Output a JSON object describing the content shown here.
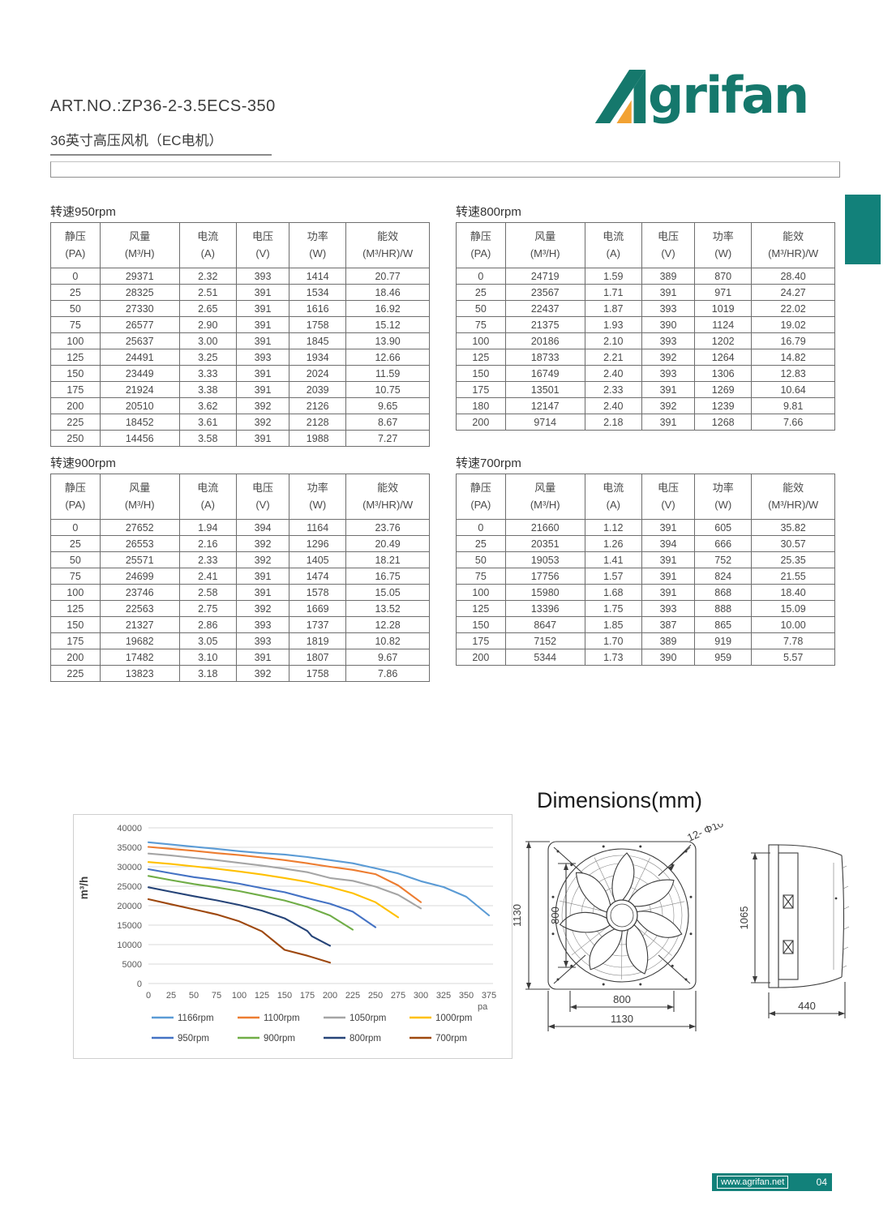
{
  "header": {
    "art_no": "ART.NO.:ZP36-2-3.5ECS-350",
    "subtitle": "36英寸高压风机（EC电机）"
  },
  "logo": {
    "full_name": "Agrifan",
    "text_after_a": "grifan",
    "teal": "#15786C",
    "orange": "#F2A233"
  },
  "colors": {
    "teal": "#12817A"
  },
  "table_columns": [
    [
      "静压",
      "(PA)"
    ],
    [
      "风量",
      "(M³/H)"
    ],
    [
      "电流",
      "(A)"
    ],
    [
      "电压",
      "(V)"
    ],
    [
      "功率",
      "(W)"
    ],
    [
      "能效",
      "(M³/HR)/W"
    ]
  ],
  "tables": [
    {
      "title": "转速950rpm",
      "rows": [
        [
          "0",
          "29371",
          "2.32",
          "393",
          "1414",
          "20.77"
        ],
        [
          "25",
          "28325",
          "2.51",
          "391",
          "1534",
          "18.46"
        ],
        [
          "50",
          "27330",
          "2.65",
          "391",
          "1616",
          "16.92"
        ],
        [
          "75",
          "26577",
          "2.90",
          "391",
          "1758",
          "15.12"
        ],
        [
          "100",
          "25637",
          "3.00",
          "391",
          "1845",
          "13.90"
        ],
        [
          "125",
          "24491",
          "3.25",
          "393",
          "1934",
          "12.66"
        ],
        [
          "150",
          "23449",
          "3.33",
          "391",
          "2024",
          "11.59"
        ],
        [
          "175",
          "21924",
          "3.38",
          "391",
          "2039",
          "10.75"
        ],
        [
          "200",
          "20510",
          "3.62",
          "392",
          "2126",
          "9.65"
        ],
        [
          "225",
          "18452",
          "3.61",
          "392",
          "2128",
          "8.67"
        ],
        [
          "250",
          "14456",
          "3.58",
          "391",
          "1988",
          "7.27"
        ]
      ]
    },
    {
      "title": "转速800rpm",
      "rows": [
        [
          "0",
          "24719",
          "1.59",
          "389",
          "870",
          "28.40"
        ],
        [
          "25",
          "23567",
          "1.71",
          "391",
          "971",
          "24.27"
        ],
        [
          "50",
          "22437",
          "1.87",
          "393",
          "1019",
          "22.02"
        ],
        [
          "75",
          "21375",
          "1.93",
          "390",
          "1124",
          "19.02"
        ],
        [
          "100",
          "20186",
          "2.10",
          "393",
          "1202",
          "16.79"
        ],
        [
          "125",
          "18733",
          "2.21",
          "392",
          "1264",
          "14.82"
        ],
        [
          "150",
          "16749",
          "2.40",
          "393",
          "1306",
          "12.83"
        ],
        [
          "175",
          "13501",
          "2.33",
          "391",
          "1269",
          "10.64"
        ],
        [
          "180",
          "12147",
          "2.40",
          "392",
          "1239",
          "9.81"
        ],
        [
          "200",
          "9714",
          "2.18",
          "391",
          "1268",
          "7.66"
        ]
      ]
    },
    {
      "title": "转速900rpm",
      "rows": [
        [
          "0",
          "27652",
          "1.94",
          "394",
          "1164",
          "23.76"
        ],
        [
          "25",
          "26553",
          "2.16",
          "392",
          "1296",
          "20.49"
        ],
        [
          "50",
          "25571",
          "2.33",
          "392",
          "1405",
          "18.21"
        ],
        [
          "75",
          "24699",
          "2.41",
          "391",
          "1474",
          "16.75"
        ],
        [
          "100",
          "23746",
          "2.58",
          "391",
          "1578",
          "15.05"
        ],
        [
          "125",
          "22563",
          "2.75",
          "392",
          "1669",
          "13.52"
        ],
        [
          "150",
          "21327",
          "2.86",
          "393",
          "1737",
          "12.28"
        ],
        [
          "175",
          "19682",
          "3.05",
          "393",
          "1819",
          "10.82"
        ],
        [
          "200",
          "17482",
          "3.10",
          "391",
          "1807",
          "9.67"
        ],
        [
          "225",
          "13823",
          "3.18",
          "392",
          "1758",
          "7.86"
        ]
      ]
    },
    {
      "title": "转速700rpm",
      "rows": [
        [
          "0",
          "21660",
          "1.12",
          "391",
          "605",
          "35.82"
        ],
        [
          "25",
          "20351",
          "1.26",
          "394",
          "666",
          "30.57"
        ],
        [
          "50",
          "19053",
          "1.41",
          "391",
          "752",
          "25.35"
        ],
        [
          "75",
          "17756",
          "1.57",
          "391",
          "824",
          "21.55"
        ],
        [
          "100",
          "15980",
          "1.68",
          "391",
          "868",
          "18.40"
        ],
        [
          "125",
          "13396",
          "1.75",
          "393",
          "888",
          "15.09"
        ],
        [
          "150",
          "8647",
          "1.85",
          "387",
          "865",
          "10.00"
        ],
        [
          "175",
          "7152",
          "1.70",
          "389",
          "919",
          "7.78"
        ],
        [
          "200",
          "5344",
          "1.73",
          "390",
          "959",
          "5.57"
        ]
      ]
    }
  ],
  "chart_data": {
    "type": "line",
    "ylabel": "m³/h",
    "xlabel": "pa",
    "xlim": [
      0,
      375
    ],
    "ylim": [
      0,
      40000
    ],
    "grid": true,
    "legend_position": "bottom",
    "yticks": [
      0,
      5000,
      10000,
      15000,
      20000,
      25000,
      30000,
      35000,
      40000
    ],
    "xticks": [
      0,
      25,
      50,
      75,
      100,
      125,
      150,
      175,
      200,
      225,
      250,
      275,
      300,
      325,
      350,
      375
    ],
    "series": [
      {
        "name": "1166rpm",
        "color": "#5B9BD5",
        "x": [
          0,
          25,
          50,
          75,
          100,
          125,
          150,
          175,
          200,
          225,
          250,
          275,
          300,
          325,
          350,
          375
        ],
        "values": [
          36300,
          35700,
          35150,
          34600,
          34000,
          33500,
          33150,
          32500,
          31700,
          30900,
          29600,
          28300,
          26300,
          24800,
          22300,
          17500
        ]
      },
      {
        "name": "1100rpm",
        "color": "#ED7D31",
        "x": [
          0,
          25,
          50,
          75,
          100,
          125,
          150,
          175,
          200,
          225,
          250,
          275,
          300
        ],
        "values": [
          35100,
          34600,
          34100,
          33500,
          33000,
          32400,
          31700,
          30900,
          30000,
          29200,
          28100,
          25200,
          20900
        ]
      },
      {
        "name": "1050rpm",
        "color": "#A5A5A5",
        "x": [
          0,
          25,
          50,
          75,
          100,
          125,
          150,
          175,
          200,
          225,
          250,
          275,
          300
        ],
        "values": [
          33400,
          32900,
          32300,
          31700,
          31000,
          30300,
          29500,
          28600,
          27100,
          26400,
          24900,
          22800,
          19300
        ]
      },
      {
        "name": "1000rpm",
        "color": "#FFC000",
        "x": [
          0,
          25,
          50,
          75,
          100,
          125,
          150,
          175,
          200,
          225,
          250,
          275
        ],
        "values": [
          31200,
          30700,
          30100,
          29500,
          28800,
          28000,
          27100,
          26100,
          24800,
          23200,
          20900,
          17000
        ]
      },
      {
        "name": "950rpm",
        "color": "#4472C4",
        "x": [
          0,
          25,
          50,
          75,
          100,
          125,
          150,
          175,
          200,
          225,
          250
        ],
        "values": [
          29371,
          28325,
          27330,
          26577,
          25637,
          24491,
          23449,
          21924,
          20510,
          18452,
          14456
        ]
      },
      {
        "name": "900rpm",
        "color": "#70AD47",
        "x": [
          0,
          25,
          50,
          75,
          100,
          125,
          150,
          175,
          200,
          225
        ],
        "values": [
          27652,
          26553,
          25571,
          24699,
          23746,
          22563,
          21327,
          19682,
          17482,
          13823
        ]
      },
      {
        "name": "800rpm",
        "color": "#264478",
        "x": [
          0,
          25,
          50,
          75,
          100,
          125,
          150,
          175,
          180,
          200
        ],
        "values": [
          24719,
          23567,
          22437,
          21375,
          20186,
          18733,
          16749,
          13501,
          12147,
          9714
        ]
      },
      {
        "name": "700rpm",
        "color": "#9E480E",
        "x": [
          0,
          25,
          50,
          75,
          100,
          125,
          150,
          175,
          200
        ],
        "values": [
          21660,
          20351,
          19053,
          17756,
          15980,
          13396,
          8647,
          7152,
          5344
        ]
      }
    ]
  },
  "dimensions": {
    "title": "Dimensions(mm)",
    "front": {
      "outer_height": "1130",
      "hole_height": "800",
      "hole_width": "800",
      "outer_width": "1130",
      "holes_note": "12- Φ10"
    },
    "side": {
      "height": "1065",
      "depth": "440"
    }
  },
  "footer": {
    "url": "www.agrifan.net",
    "page": "04"
  }
}
